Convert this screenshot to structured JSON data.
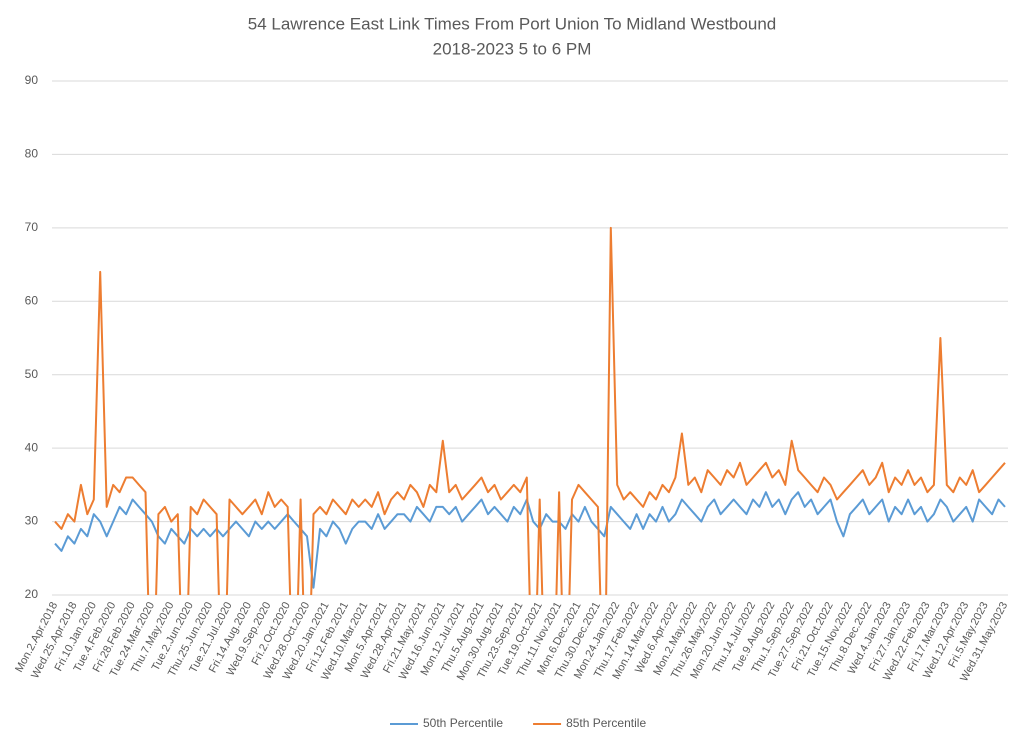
{
  "chart_data": {
    "type": "line",
    "title": "54 Lawrence East Link Times From Port Union To Midland Westbound",
    "subtitle": "2018-2023 5 to 6 PM",
    "categories": [
      "Mon.2.Apr.2018",
      null,
      null,
      "Wed.25.Apr.2018",
      null,
      null,
      "Fri.10.Jan.2020",
      null,
      null,
      "Tue.4.Feb.2020",
      null,
      null,
      "Fri.28.Feb.2020",
      null,
      null,
      "Tue.24.Mar.2020",
      null,
      null,
      "Thu.7.May.2020",
      null,
      null,
      "Tue.2.Jun.2020",
      null,
      null,
      "Thu.25.Jun.2020",
      null,
      null,
      "Tue.21.Jul.2020",
      null,
      null,
      "Fri.14.Aug.2020",
      null,
      null,
      "Wed.9.Sep.2020",
      null,
      null,
      "Fri.2.Oct.2020",
      null,
      null,
      "Wed.28.Oct.2020",
      null,
      null,
      "Wed.20.Jan.2021",
      null,
      null,
      "Fri.12.Feb.2021",
      null,
      null,
      "Wed.10.Mar.2021",
      null,
      null,
      "Mon.5.Apr.2021",
      null,
      null,
      "Wed.28.Apr.2021",
      null,
      null,
      "Fri.21.May.2021",
      null,
      null,
      "Wed.16.Jun.2021",
      null,
      null,
      "Mon.12.Jul.2021",
      null,
      null,
      "Thu.5.Aug.2021",
      null,
      null,
      "Mon.30.Aug.2021",
      null,
      null,
      "Thu.23.Sep.2021",
      null,
      null,
      "Tue.19.Oct.2021",
      null,
      null,
      "Thu.11.Nov.2021",
      null,
      null,
      "Mon.6.Dec.2021",
      null,
      null,
      "Thu.30.Dec.2021",
      null,
      null,
      "Mon.24.Jan.2022",
      null,
      null,
      "Thu.17.Feb.2022",
      null,
      null,
      "Mon.14.Mar.2022",
      null,
      null,
      "Wed.6.Apr.2022",
      null,
      null,
      "Mon.2.May.2022",
      null,
      null,
      "Thu.26.May.2022",
      null,
      null,
      "Mon.20.Jun.2022",
      null,
      null,
      "Thu.14.Jul.2022",
      null,
      null,
      "Tue.9.Aug.2022",
      null,
      null,
      "Thu.1.Sep.2022",
      null,
      null,
      "Tue.27.Sep.2022",
      null,
      null,
      "Fri.21.Oct.2022",
      null,
      null,
      "Tue.15.Nov.2022",
      null,
      null,
      "Thu.8.Dec.2022",
      null,
      null,
      "Wed.4.Jan.2023",
      null,
      null,
      "Fri.27.Jan.2023",
      null,
      null,
      "Wed.22.Feb.2023",
      null,
      null,
      "Fri.17.Mar.2023",
      null,
      null,
      "Wed.12.Apr.2023",
      null,
      null,
      "Fri.5.May.2023",
      null,
      null,
      "Wed.31.May.2023"
    ],
    "series": [
      {
        "name": "50th Percentile",
        "color": "#5b9bd5",
        "values": [
          27,
          26,
          28,
          27,
          29,
          28,
          31,
          30,
          28,
          30,
          32,
          31,
          33,
          32,
          31,
          30,
          28,
          27,
          29,
          28,
          27,
          29,
          28,
          29,
          28,
          29,
          28,
          29,
          30,
          29,
          28,
          30,
          29,
          30,
          29,
          30,
          31,
          30,
          29,
          28,
          21,
          29,
          28,
          30,
          29,
          27,
          29,
          30,
          30,
          29,
          31,
          29,
          30,
          31,
          31,
          30,
          32,
          31,
          30,
          32,
          32,
          31,
          32,
          30,
          31,
          32,
          33,
          31,
          32,
          31,
          30,
          32,
          31,
          33,
          30,
          29,
          31,
          30,
          30,
          29,
          31,
          30,
          32,
          30,
          29,
          28,
          32,
          31,
          30,
          29,
          31,
          29,
          31,
          30,
          32,
          30,
          31,
          33,
          32,
          31,
          30,
          32,
          33,
          31,
          32,
          33,
          32,
          31,
          33,
          32,
          34,
          32,
          33,
          31,
          33,
          34,
          32,
          33,
          31,
          32,
          33,
          30,
          28,
          31,
          32,
          33,
          31,
          32,
          33,
          30,
          32,
          31,
          33,
          31,
          32,
          30,
          31,
          33,
          32,
          30,
          31,
          32,
          30,
          33,
          32,
          31,
          33,
          32
        ]
      },
      {
        "name": "85th Percentile",
        "color": "#ed7d31",
        "values": [
          30,
          29,
          31,
          30,
          35,
          31,
          33,
          64,
          32,
          35,
          34,
          36,
          36,
          35,
          34,
          0,
          31,
          32,
          30,
          31,
          0,
          32,
          31,
          33,
          32,
          31,
          0,
          33,
          32,
          31,
          32,
          33,
          31,
          34,
          32,
          33,
          32,
          0,
          33,
          0,
          31,
          32,
          31,
          33,
          32,
          31,
          33,
          32,
          33,
          32,
          34,
          31,
          33,
          34,
          33,
          35,
          34,
          32,
          35,
          34,
          41,
          34,
          35,
          33,
          34,
          35,
          36,
          34,
          35,
          33,
          34,
          35,
          34,
          36,
          0,
          33,
          0,
          0,
          34,
          0,
          33,
          35,
          34,
          33,
          32,
          0,
          70,
          35,
          33,
          34,
          33,
          32,
          34,
          33,
          35,
          34,
          36,
          42,
          35,
          36,
          34,
          37,
          36,
          35,
          37,
          36,
          38,
          35,
          36,
          37,
          38,
          36,
          37,
          35,
          41,
          37,
          36,
          35,
          34,
          36,
          35,
          33,
          34,
          35,
          36,
          37,
          35,
          36,
          38,
          34,
          36,
          35,
          37,
          35,
          36,
          34,
          35,
          55,
          35,
          34,
          36,
          35,
          37,
          34,
          35,
          36,
          37,
          38
        ]
      }
    ],
    "ylim": [
      20,
      90
    ],
    "yticks": [
      20,
      30,
      40,
      50,
      60,
      70,
      80,
      90
    ],
    "grid": true,
    "legend": "bottom"
  }
}
